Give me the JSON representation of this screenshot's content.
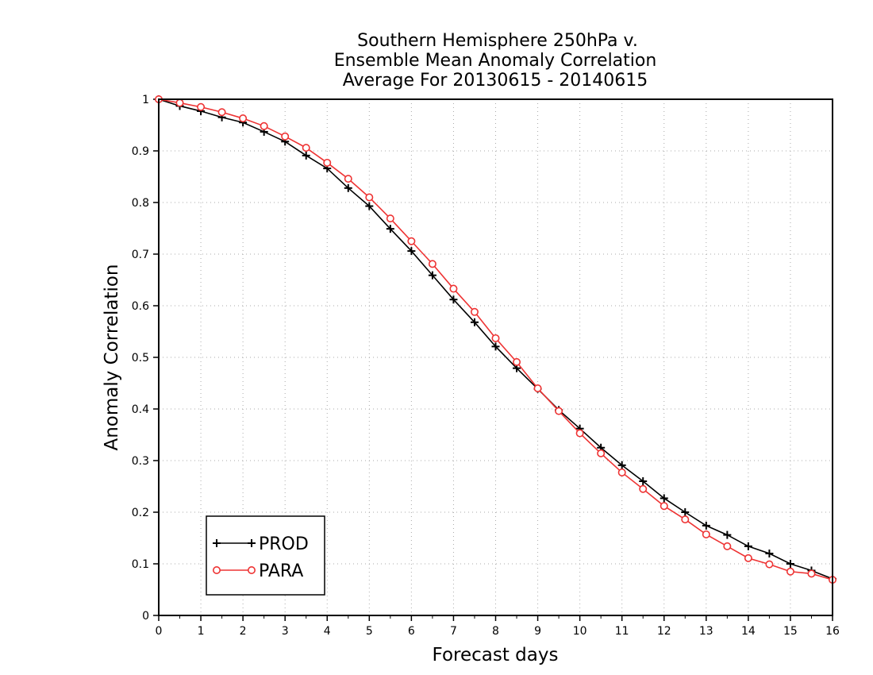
{
  "chart_data": {
    "type": "line",
    "title": [
      "Southern Hemisphere 250hPa v.",
      "Ensemble Mean Anomaly Correlation",
      "Average For 20130615 - 20140615"
    ],
    "xlabel": "Forecast days",
    "ylabel": "Anomaly Correlation",
    "xlim": [
      0,
      16
    ],
    "ylim": [
      0,
      1
    ],
    "xticks": [
      "0",
      "1",
      "2",
      "3",
      "4",
      "5",
      "6",
      "7",
      "8",
      "9",
      "10",
      "11",
      "12",
      "13",
      "14",
      "15",
      "16"
    ],
    "yticks": [
      "0",
      "0.1",
      "0.2",
      "0.3",
      "0.4",
      "0.5",
      "0.6",
      "0.7",
      "0.8",
      "0.9",
      "1"
    ],
    "grid": true,
    "legend_position": "bottom-left",
    "x": [
      0,
      0.5,
      1,
      1.5,
      2,
      2.5,
      3,
      3.5,
      4,
      4.5,
      5,
      5.5,
      6,
      6.5,
      7,
      7.5,
      8,
      8.5,
      9,
      9.5,
      10,
      10.5,
      11,
      11.5,
      12,
      12.5,
      13,
      13.5,
      14,
      14.5,
      15,
      15.5,
      16
    ],
    "series": [
      {
        "name": "PROD",
        "color": "#000000",
        "marker": "plus",
        "values": [
          1.0,
          0.987,
          0.977,
          0.965,
          0.955,
          0.937,
          0.918,
          0.891,
          0.866,
          0.828,
          0.793,
          0.749,
          0.706,
          0.659,
          0.612,
          0.568,
          0.521,
          0.479,
          0.439,
          0.398,
          0.362,
          0.325,
          0.291,
          0.26,
          0.227,
          0.2,
          0.174,
          0.156,
          0.134,
          0.12,
          0.1,
          0.087,
          0.071
        ]
      },
      {
        "name": "PARA",
        "color": "#ee3333",
        "marker": "circle",
        "values": [
          1.0,
          0.993,
          0.985,
          0.975,
          0.963,
          0.948,
          0.928,
          0.906,
          0.877,
          0.846,
          0.81,
          0.769,
          0.725,
          0.681,
          0.633,
          0.588,
          0.537,
          0.491,
          0.44,
          0.396,
          0.353,
          0.314,
          0.277,
          0.245,
          0.212,
          0.186,
          0.157,
          0.134,
          0.111,
          0.099,
          0.085,
          0.081,
          0.069
        ]
      }
    ]
  }
}
